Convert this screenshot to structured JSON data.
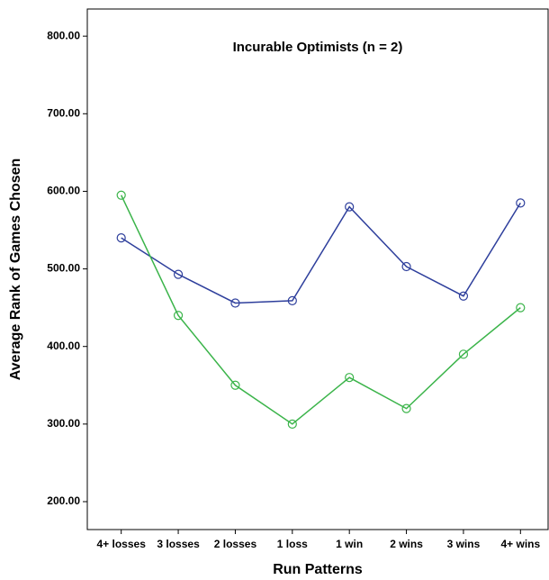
{
  "chart_data": {
    "type": "line",
    "title": "Incurable Optimists (n = 2)",
    "x_label": "Run Patterns",
    "y_label": "Average Rank of Games Chosen",
    "categories": [
      "4+ losses",
      "3 losses",
      "2 losses",
      "1 loss",
      "1 win",
      "2 wins",
      "3 wins",
      "4+ wins"
    ],
    "series": [
      {
        "color": "#2e3f9c",
        "values": [
          540,
          493,
          456,
          459,
          580,
          503,
          465,
          585
        ]
      },
      {
        "color": "#3bb44a",
        "values": [
          595,
          440,
          350,
          300,
          360,
          320,
          390,
          450
        ]
      }
    ],
    "ylim": [
      164,
      835
    ],
    "yticks": [
      {
        "value": 200,
        "label": "200.00"
      },
      {
        "value": 300,
        "label": "300.00"
      },
      {
        "value": 400,
        "label": "400.00"
      },
      {
        "value": 500,
        "label": "500.00"
      },
      {
        "value": 600,
        "label": "600.00"
      },
      {
        "value": 700,
        "label": "700.00"
      },
      {
        "value": 800,
        "label": "800.00"
      }
    ],
    "grid": false
  }
}
